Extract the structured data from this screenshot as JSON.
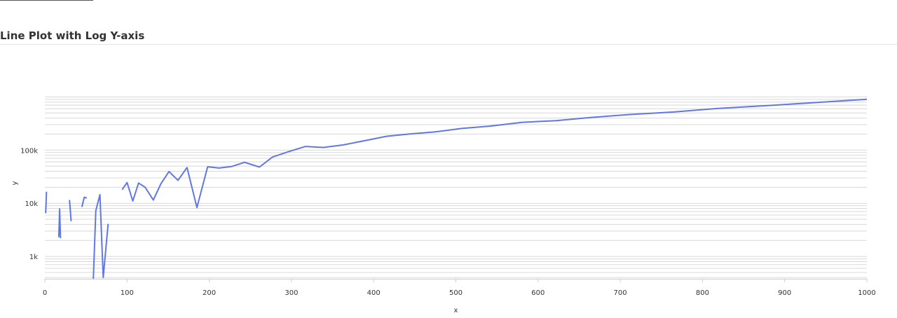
{
  "header": {
    "title": "Line Plot with Log Y-axis"
  },
  "colors": {
    "line": "#6177e4",
    "grid": "#d8d8d8",
    "axis": "#cccccc",
    "text": "#333333"
  },
  "chart_data": {
    "type": "line",
    "title": "Line Plot with Log Y-axis",
    "xlabel": "x",
    "ylabel": "y",
    "xlim": [
      0,
      1000
    ],
    "ylim": [
      380,
      1500000
    ],
    "yscale": "log",
    "grid": "horizontal minor and major lines on y",
    "legend": "none",
    "x_ticks": [
      0,
      100,
      200,
      300,
      400,
      500,
      600,
      700,
      800,
      900,
      1000
    ],
    "x_tick_labels": [
      "0",
      "100",
      "200",
      "300",
      "400",
      "500",
      "600",
      "700",
      "800",
      "900",
      "1000"
    ],
    "y_ticks": [
      1000,
      10000,
      100000
    ],
    "y_tick_labels": [
      "1k",
      "10k",
      "100k"
    ],
    "series": [
      {
        "segments": [
          [
            [
              1,
              6500
            ],
            [
              2,
              16500
            ]
          ],
          [
            [
              17,
              2300
            ],
            [
              18,
              7800
            ],
            [
              19,
              2200
            ]
          ],
          [
            [
              30,
              11500
            ],
            [
              32,
              4600
            ]
          ],
          [
            [
              45,
              8500
            ],
            [
              48,
              13000
            ],
            [
              51,
              12500
            ]
          ],
          [
            [
              59,
              380
            ],
            [
              62,
              7200
            ],
            [
              67,
              14500
            ],
            [
              71,
              400
            ],
            [
              77,
              4100
            ]
          ],
          [
            [
              94,
              18000
            ],
            [
              100,
              24500
            ],
            [
              107,
              11000
            ],
            [
              114,
              24000
            ],
            [
              122,
              20000
            ],
            [
              132,
              11500
            ],
            [
              141,
              23000
            ],
            [
              151,
              39500
            ],
            [
              162,
              27000
            ],
            [
              173,
              47000
            ],
            [
              185,
              8300
            ],
            [
              198,
              48500
            ],
            [
              212,
              46000
            ],
            [
              227,
              49000
            ],
            [
              243,
              59000
            ],
            [
              261,
              48000
            ],
            [
              277,
              74000
            ],
            [
              296,
              93000
            ],
            [
              317,
              117000
            ],
            [
              339,
              112000
            ],
            [
              363,
              125000
            ],
            [
              388,
              149000
            ],
            [
              416,
              182000
            ],
            [
              443,
              200000
            ],
            [
              474,
              219000
            ],
            [
              507,
              255000
            ],
            [
              542,
              283000
            ],
            [
              581,
              333000
            ],
            [
              622,
              357000
            ],
            [
              664,
              411000
            ],
            [
              708,
              462000
            ],
            [
              765,
              521000
            ],
            [
              818,
              606000
            ],
            [
              888,
              700000
            ],
            [
              953,
              810000
            ],
            [
              1000,
              900000
            ]
          ]
        ]
      }
    ]
  }
}
